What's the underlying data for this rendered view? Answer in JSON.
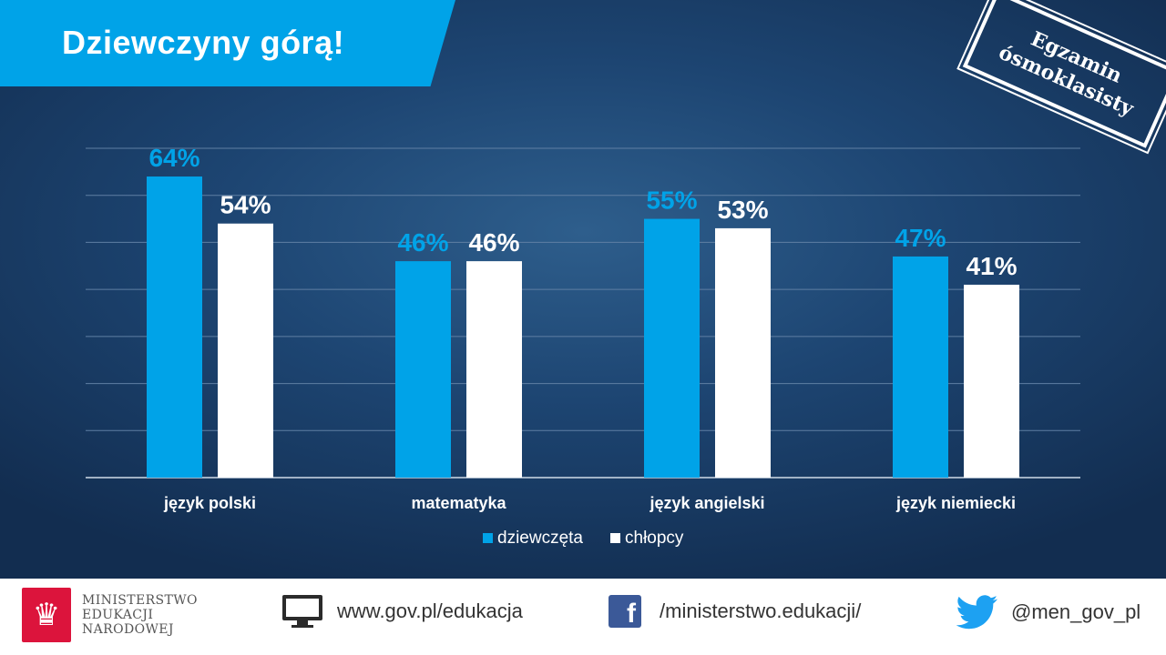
{
  "title": "Dziewczyny górą!",
  "stamp": {
    "line1": "Egzamin",
    "line2": "ósmoklasisty"
  },
  "colors": {
    "accent": "#00a3e8",
    "girls": "#00a3e8",
    "boys": "#ffffff",
    "background": "#1d4572"
  },
  "chart_data": {
    "type": "bar",
    "categories": [
      "język polski",
      "matematyka",
      "język angielski",
      "język niemiecki"
    ],
    "series": [
      {
        "name": "dziewczęta",
        "values": [
          64,
          46,
          55,
          47
        ],
        "labels": [
          "64%",
          "46%",
          "55%",
          "47%"
        ],
        "color": "#00a3e8"
      },
      {
        "name": "chłopcy",
        "values": [
          54,
          46,
          53,
          41
        ],
        "labels": [
          "54%",
          "46%",
          "53%",
          "41%"
        ],
        "color": "#ffffff"
      }
    ],
    "ylim": [
      0,
      70
    ],
    "grid": true,
    "legend": "bottom-center"
  },
  "footer": {
    "ministry": [
      "MINISTERSTWO",
      "EDUKACJI",
      "NARODOWEJ"
    ],
    "website": "www.gov.pl/edukacja",
    "facebook": "/ministerstwo.edukacji/",
    "twitter": "@men_gov_pl",
    "icons": [
      "eagle-emblem-icon",
      "monitor-icon",
      "facebook-icon",
      "twitter-icon"
    ]
  }
}
